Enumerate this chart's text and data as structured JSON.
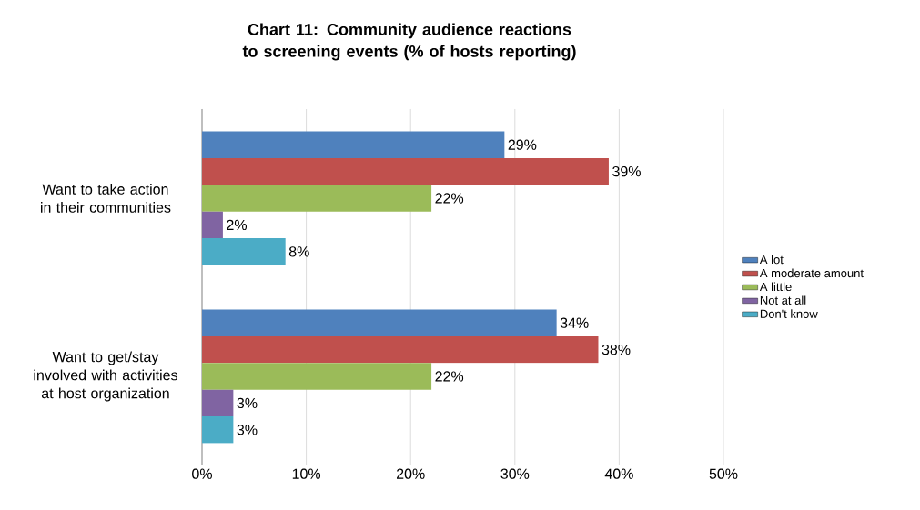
{
  "chart_data": {
    "type": "bar",
    "orientation": "horizontal",
    "title": "Chart 11: Community audience reactions to screening events (% of hosts reporting)",
    "categories": [
      "Want to take action in their communities",
      "Want to get/stay involved with activities at host organization"
    ],
    "series": [
      {
        "name": "A lot",
        "color": "#4f81bd",
        "values": [
          29,
          34
        ],
        "value_labels": [
          "29%",
          "34%"
        ]
      },
      {
        "name": "A moderate amount",
        "color": "#c0504d",
        "values": [
          39,
          38
        ],
        "value_labels": [
          "39%",
          "38%"
        ]
      },
      {
        "name": "A little",
        "color": "#9bbb59",
        "values": [
          22,
          22
        ],
        "value_labels": [
          "22%",
          "22%"
        ]
      },
      {
        "name": "Not at all",
        "color": "#8064a2",
        "values": [
          2,
          3
        ],
        "value_labels": [
          "2%",
          "3%"
        ]
      },
      {
        "name": "Don't know",
        "color": "#4bacc6",
        "values": [
          8,
          3
        ],
        "value_labels": [
          "8%",
          "3%"
        ]
      }
    ],
    "xlim": [
      0,
      50
    ],
    "xticks": [
      {
        "value": 0,
        "label": "0%"
      },
      {
        "value": 10,
        "label": "10%"
      },
      {
        "value": 20,
        "label": "20%"
      },
      {
        "value": 30,
        "label": "30%"
      },
      {
        "value": 40,
        "label": "40%"
      },
      {
        "value": 50,
        "label": "50%"
      }
    ],
    "grid": "x",
    "legend": "right"
  }
}
